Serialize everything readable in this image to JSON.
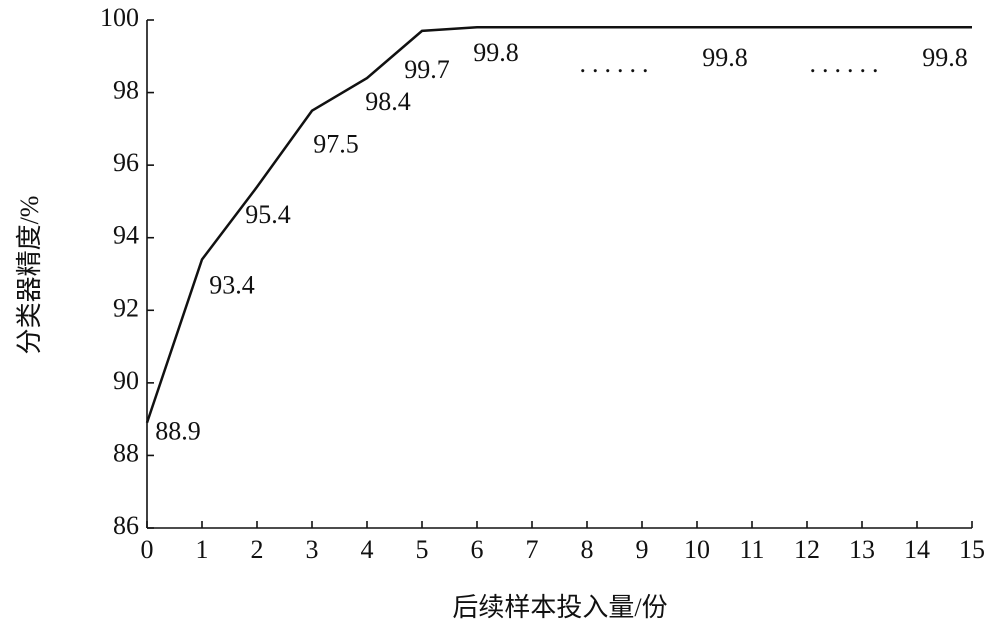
{
  "chart_data": {
    "type": "line",
    "x_label": "后续样本投入量/份",
    "y_label": "分类器精度/%",
    "x": [
      0,
      1,
      2,
      3,
      4,
      5,
      6,
      10,
      15
    ],
    "series": [
      {
        "name": "分类器精度",
        "color": "#111111",
        "values": [
          88.9,
          93.4,
          95.4,
          97.5,
          98.4,
          99.7,
          99.8,
          99.8,
          99.8
        ]
      }
    ],
    "annotations": [
      "......",
      "......"
    ],
    "xlim": [
      0,
      15
    ],
    "xticks": [
      0,
      1,
      2,
      3,
      4,
      5,
      6,
      7,
      8,
      9,
      10,
      11,
      12,
      13,
      14,
      15
    ],
    "ylim": [
      86,
      100
    ],
    "yticks": [
      86,
      88,
      90,
      92,
      94,
      96,
      98,
      100
    ],
    "grid": false,
    "legend": false
  }
}
